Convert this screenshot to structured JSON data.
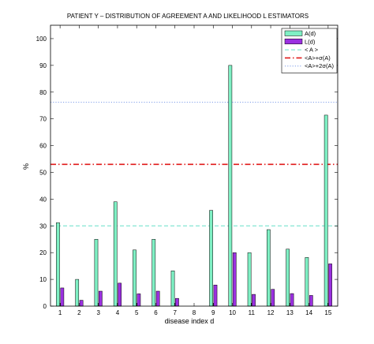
{
  "chart_data": {
    "type": "bar",
    "title": "PATIENT Y –   DISTRIBUTION OF AGREEMENT A AND LIKELIHOOD L ESTIMATORS",
    "xlabel": "disease index d",
    "ylabel": "%",
    "ylim": [
      0,
      105
    ],
    "yticks": [
      0,
      10,
      20,
      30,
      40,
      50,
      60,
      70,
      80,
      90,
      100
    ],
    "categories": [
      "1",
      "2",
      "3",
      "4",
      "5",
      "6",
      "7",
      "8",
      "9",
      "10",
      "11",
      "12",
      "13",
      "14",
      "15"
    ],
    "series": [
      {
        "name": "A(d)",
        "color": "#7ff0c4",
        "values": [
          31.2,
          10.0,
          25.0,
          39.0,
          21.0,
          25.0,
          13.2,
          0,
          35.8,
          90.0,
          20.0,
          28.6,
          21.3,
          18.2,
          71.4
        ]
      },
      {
        "name": "L(d)",
        "color": "#9b30e0",
        "values": [
          6.8,
          2.2,
          5.6,
          8.6,
          4.6,
          5.6,
          2.9,
          0,
          7.9,
          20.0,
          4.4,
          6.3,
          4.7,
          4.0,
          15.8
        ]
      }
    ],
    "reference_lines": [
      {
        "name": "< A >",
        "value": 30.0,
        "color": "#66e0c8",
        "style": "dashed"
      },
      {
        "name": "<A>+σ(A)",
        "value": 53.0,
        "color": "#e01a1a",
        "style": "dashdot"
      },
      {
        "name": "<A>+2σ(A)",
        "value": 76.2,
        "color": "#7a9ae8",
        "style": "dotted"
      }
    ],
    "legend_position": "top-right",
    "grid": false
  }
}
